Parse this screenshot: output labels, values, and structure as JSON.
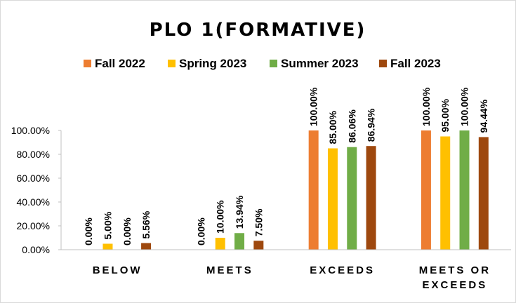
{
  "chart_data": {
    "type": "bar",
    "title": "PLO 1(FORMATIVE)",
    "categories": [
      [
        "BELOW"
      ],
      [
        "MEETS"
      ],
      [
        "EXCEEDS"
      ],
      [
        "MEETS OR",
        "EXCEEDS"
      ]
    ],
    "series": [
      {
        "name": "Fall 2022",
        "color": "#ED7D31",
        "values": [
          0.0,
          0.0,
          100.0,
          100.0
        ],
        "labels": [
          "0.00%",
          "0.00%",
          "100.00%",
          "100.00%"
        ]
      },
      {
        "name": "Spring 2023",
        "color": "#FFC000",
        "values": [
          5.0,
          10.0,
          85.0,
          95.0
        ],
        "labels": [
          "5.00%",
          "10.00%",
          "85.00%",
          "95.00%"
        ]
      },
      {
        "name": "Summer 2023",
        "color": "#70AD47",
        "values": [
          0.0,
          13.94,
          86.06,
          100.0
        ],
        "labels": [
          "0.00%",
          "13.94%",
          "86.06%",
          "100.00%"
        ]
      },
      {
        "name": "Fall 2023",
        "color": "#9E480E",
        "values": [
          5.56,
          7.5,
          86.94,
          94.44
        ],
        "labels": [
          "5.56%",
          "7.50%",
          "86.94%",
          "94.44%"
        ]
      }
    ],
    "ylim": [
      0,
      100
    ],
    "yticks": [
      "0.00%",
      "20.00%",
      "40.00%",
      "60.00%",
      "80.00%",
      "100.00%"
    ],
    "legend_position": "top",
    "grid": false
  }
}
